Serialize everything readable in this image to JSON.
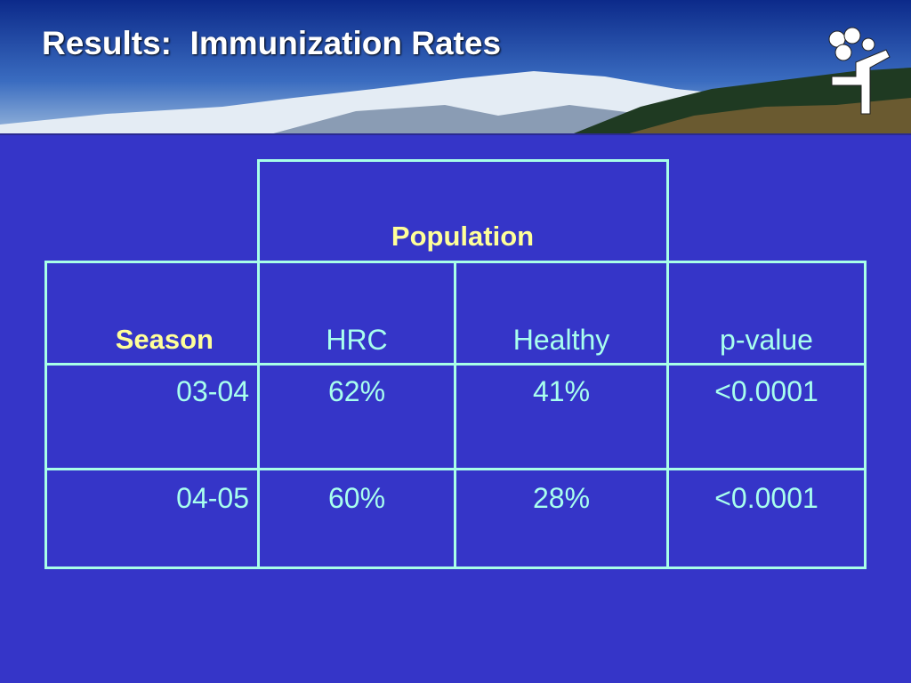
{
  "header": {
    "title": "Results:  Immunization Rates"
  },
  "table": {
    "group_header": "Population",
    "columns": [
      "Season",
      "HRC",
      "Healthy",
      "p-value"
    ],
    "rows": [
      [
        "03-04",
        "62%",
        "41%",
        "<0.0001"
      ],
      [
        "04-05",
        "60%",
        "28%",
        "<0.0001"
      ]
    ]
  }
}
